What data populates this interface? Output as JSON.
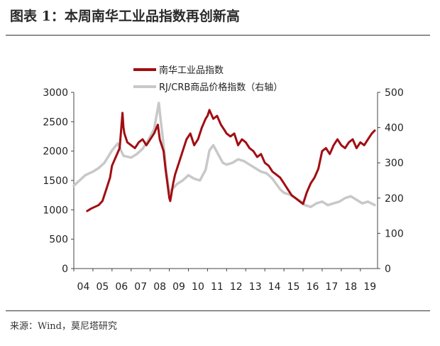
{
  "figure": {
    "title": "图表 1：本周南华工业品指数再创新高",
    "source": "来源：Wind，莫尼塔研究"
  },
  "chart_data": {
    "type": "line",
    "legend_placement": "top-center",
    "grid": false,
    "x_ticks": [
      "04",
      "05",
      "06",
      "07",
      "08",
      "09",
      "10",
      "11",
      "12",
      "13",
      "14",
      "15",
      "16",
      "17",
      "18",
      "19"
    ],
    "xlim": [
      2004.0,
      2019.9
    ],
    "y_left": {
      "lim": [
        0,
        3000
      ],
      "ticks": [
        0,
        500,
        1000,
        1500,
        2000,
        2500,
        3000
      ]
    },
    "y_right": {
      "lim": [
        0,
        500
      ],
      "ticks": [
        0,
        100,
        200,
        300,
        400,
        500
      ]
    },
    "colors": {
      "nanhua": "#a10d12",
      "rjcrb": "#c8c8c8"
    },
    "series": [
      {
        "name": "南华工业品指数",
        "axis": "left",
        "x": [
          2004.7,
          2004.9,
          2005.1,
          2005.3,
          2005.5,
          2005.7,
          2005.9,
          2006.0,
          2006.2,
          2006.4,
          2006.55,
          2006.6,
          2006.65,
          2006.8,
          2007.0,
          2007.2,
          2007.4,
          2007.6,
          2007.8,
          2008.0,
          2008.2,
          2008.4,
          2008.5,
          2008.6,
          2008.7,
          2008.8,
          2009.0,
          2009.05,
          2009.1,
          2009.2,
          2009.3,
          2009.5,
          2009.7,
          2009.9,
          2010.1,
          2010.3,
          2010.5,
          2010.7,
          2010.9,
          2011.0,
          2011.1,
          2011.3,
          2011.5,
          2011.7,
          2011.9,
          2012.0,
          2012.2,
          2012.4,
          2012.6,
          2012.8,
          2013.0,
          2013.2,
          2013.4,
          2013.6,
          2013.8,
          2014.0,
          2014.2,
          2014.4,
          2014.6,
          2014.8,
          2015.0,
          2015.2,
          2015.4,
          2015.6,
          2015.8,
          2016.0,
          2016.2,
          2016.4,
          2016.6,
          2016.8,
          2017.0,
          2017.2,
          2017.4,
          2017.6,
          2017.8,
          2018.0,
          2018.2,
          2018.4,
          2018.6,
          2018.8,
          2019.0,
          2019.2,
          2019.4,
          2019.6,
          2019.75
        ],
        "y": [
          980,
          1020,
          1050,
          1080,
          1150,
          1350,
          1550,
          1750,
          1900,
          2050,
          2650,
          2400,
          2300,
          2150,
          2100,
          2050,
          2150,
          2200,
          2100,
          2200,
          2300,
          2450,
          2200,
          2100,
          2000,
          1700,
          1200,
          1150,
          1250,
          1450,
          1600,
          1800,
          2000,
          2200,
          2300,
          2100,
          2200,
          2400,
          2550,
          2600,
          2700,
          2550,
          2600,
          2450,
          2350,
          2300,
          2250,
          2300,
          2100,
          2200,
          2150,
          2050,
          2000,
          1900,
          1950,
          1800,
          1750,
          1650,
          1600,
          1550,
          1450,
          1350,
          1250,
          1200,
          1150,
          1100,
          1300,
          1450,
          1550,
          1700,
          2000,
          2050,
          1950,
          2100,
          2200,
          2100,
          2050,
          2150,
          2200,
          2050,
          2150,
          2100,
          2200,
          2300,
          2350
        ]
      },
      {
        "name": "RJ/CRB商品价格指数（右轴）",
        "axis": "right",
        "x": [
          2004.0,
          2004.3,
          2004.6,
          2005.0,
          2005.3,
          2005.6,
          2006.0,
          2006.3,
          2006.6,
          2007.0,
          2007.3,
          2007.6,
          2007.9,
          2008.2,
          2008.45,
          2008.55,
          2008.7,
          2008.85,
          2009.0,
          2009.15,
          2009.4,
          2009.7,
          2010.0,
          2010.3,
          2010.6,
          2010.9,
          2011.1,
          2011.3,
          2011.5,
          2011.8,
          2012.0,
          2012.3,
          2012.6,
          2012.9,
          2013.2,
          2013.5,
          2013.8,
          2014.1,
          2014.4,
          2014.6,
          2014.8,
          2015.0,
          2015.3,
          2015.6,
          2015.9,
          2016.1,
          2016.4,
          2016.7,
          2017.0,
          2017.3,
          2017.6,
          2017.9,
          2018.2,
          2018.5,
          2018.8,
          2019.1,
          2019.4,
          2019.75
        ],
        "y": [
          235,
          250,
          265,
          275,
          285,
          300,
          335,
          355,
          320,
          315,
          325,
          340,
          365,
          395,
          470,
          420,
          350,
          270,
          215,
          225,
          240,
          250,
          265,
          255,
          250,
          280,
          335,
          350,
          330,
          300,
          295,
          300,
          310,
          305,
          295,
          285,
          275,
          270,
          255,
          240,
          225,
          215,
          210,
          200,
          190,
          180,
          175,
          185,
          190,
          180,
          185,
          190,
          200,
          205,
          195,
          185,
          190,
          180
        ]
      }
    ]
  }
}
